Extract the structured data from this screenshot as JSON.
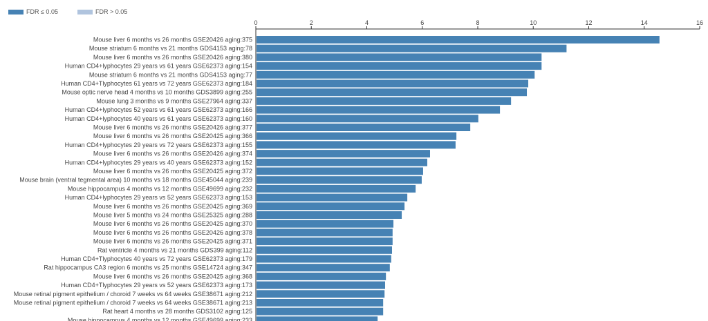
{
  "legend": [
    {
      "label": "FDR ≤ 0.05",
      "color": "#4682b4"
    },
    {
      "label": "FDR > 0.05",
      "color": "#b0c4de"
    }
  ],
  "chart_data": {
    "type": "bar",
    "orientation": "horizontal",
    "xlim": [
      0,
      16
    ],
    "xticks": [
      0,
      2,
      4,
      6,
      8,
      10,
      12,
      14,
      16
    ],
    "axis_position": "top",
    "grid": false,
    "legend_placement": "top-left",
    "bar_color": "#4682b4",
    "categories": [
      "Mouse liver 6 months vs 26 months GSE20426 aging:375",
      "Mouse striatum 6 months vs 21 months GDS4153 aging:78",
      "Mouse liver 6 months vs 26 months GSE20426 aging:380",
      "Human CD4+lyphocytes 29 years vs 61 years GSE62373 aging:154",
      "Mouse striatum 6 months vs 21 months GDS4153 aging:77",
      "Human CD4+Tlyphocytes 61 years vs 72 years GSE62373 aging:184",
      "Mouse optic nerve head 4 months vs 10 months GDS3899 aging:255",
      "Mouse lung 3 months vs 9 months GSE27964 aging:337",
      "Human CD4+lyphocytes 52 years vs 61 years GSE62373 aging:166",
      "Human CD4+lyphocytes 40 years vs 61 years GSE62373 aging:160",
      "Mouse liver 6 months vs 26 months GSE20426 aging:377",
      "Mouse liver 6 months vs 26 months GSE20425 aging:366",
      "Human CD4+lyphocytes 29 years vs 72 years GSE62373 aging:155",
      "Mouse liver 6 months vs 26 months GSE20426 aging:374",
      "Human CD4+lyphocytes 29 years vs 40 years GSE62373 aging:152",
      "Mouse liver 6 months vs 26 months GSE20425 aging:372",
      "Mouse brain (ventral tegmental area) 10 months vs 18 months GSE45044 aging:239",
      "Mouse hippocampus 4 months vs 12 months GSE49699 aging:232",
      "Human CD4+lyphocytes 29 years vs 52 years GSE62373 aging:153",
      "Mouse liver 6 months vs 26 months GSE20425 aging:369",
      "Mouse liver 5 months vs 24 months GSE25325 aging:288",
      "Mouse liver 6 months vs 26 months GSE20425 aging:370",
      "Mouse liver 6 months vs 26 months GSE20426 aging:378",
      "Mouse liver 6 months vs 26 months GSE20425 aging:371",
      "Rat ventricle 4 months vs 21 months GDS399 aging:112",
      "Human CD4+Tlyphocytes 40 years vs 72 years GSE62373 aging:179",
      "Rat hippocampus CA3 region 6 months vs 25 months GSE14724 aging:347",
      "Mouse liver 6 months vs 26 months GSE20425 aging:368",
      "Human CD4+Tlyphocytes 29 years vs 52 years GSE62373 aging:173",
      "Mouse retinal pigment epithelium / choroid 7 weeks vs 64 weeks GSE38671 aging:212",
      "Mouse retinal pigment epithelium / choroid 7 weeks vs 64 weeks GSE38671 aging:213",
      "Rat heart 4 months vs 28 months GDS3102 aging:125",
      "Mouse hippocampus 4 months vs 12 months GSE49699 aging:233"
    ],
    "values": [
      14.55,
      11.2,
      10.3,
      10.3,
      10.05,
      9.82,
      9.77,
      9.2,
      8.8,
      8.02,
      7.73,
      7.23,
      7.2,
      6.28,
      6.18,
      6.03,
      5.98,
      5.76,
      5.46,
      5.36,
      5.26,
      4.96,
      4.93,
      4.93,
      4.91,
      4.88,
      4.83,
      4.69,
      4.66,
      4.64,
      4.59,
      4.59,
      4.39
    ]
  }
}
